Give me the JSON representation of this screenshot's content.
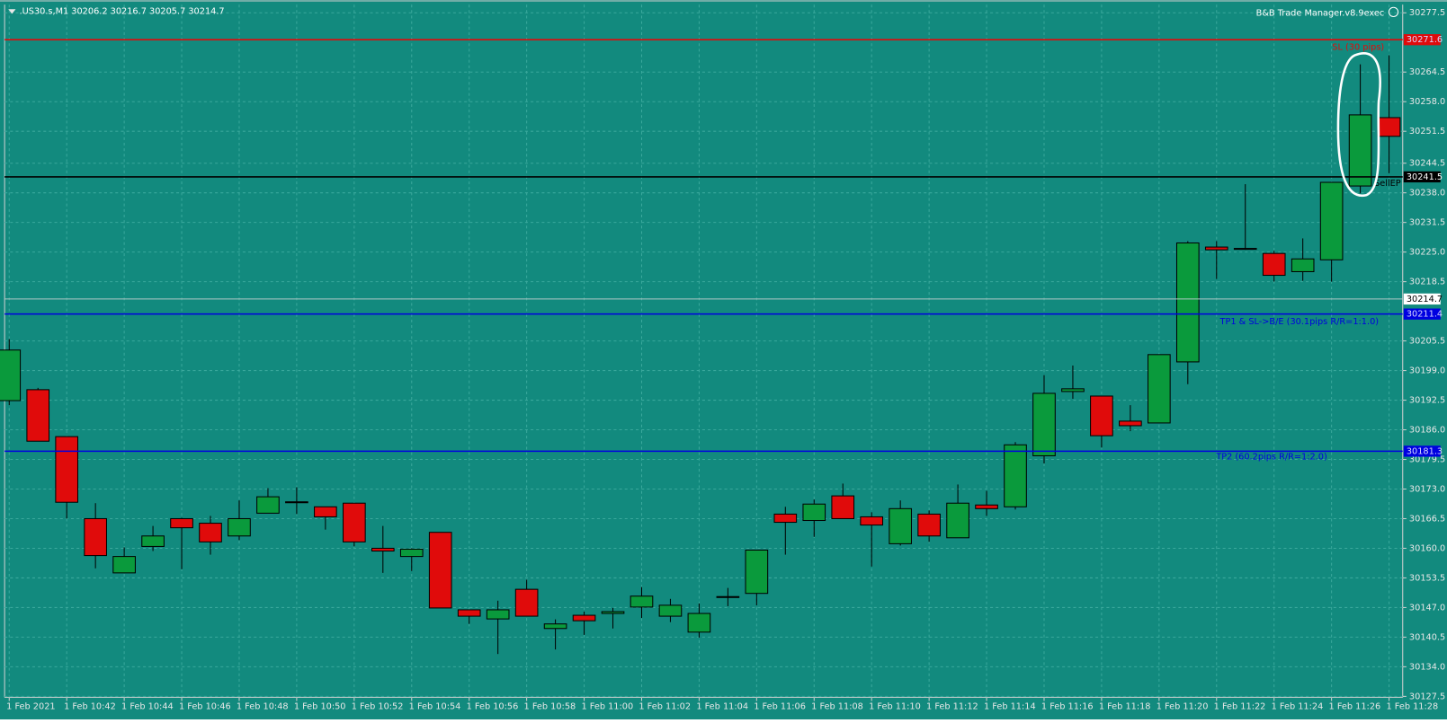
{
  "chart_data": {
    "type": "candlestick",
    "title": ".US30.s,M1  30206.2 30216.7 30205.7 30214.7",
    "indicator": "B&B Trade Manager.v8.9exec",
    "categories": [
      "1 Feb 2021",
      null,
      "1 Feb 10:42",
      null,
      "1 Feb 10:44",
      null,
      "1 Feb 10:46",
      null,
      "1 Feb 10:48",
      null,
      "1 Feb 10:50",
      null,
      "1 Feb 10:52",
      null,
      "1 Feb 10:54",
      null,
      "1 Feb 10:56",
      null,
      "1 Feb 10:58",
      null,
      "1 Feb 11:00",
      null,
      "1 Feb 11:02",
      null,
      "1 Feb 11:04",
      null,
      "1 Feb 11:06",
      null,
      "1 Feb 11:08",
      null,
      "1 Feb 11:10",
      null,
      "1 Feb 11:12",
      null,
      "1 Feb 11:14",
      null,
      "1 Feb 11:16",
      null,
      "1 Feb 11:18",
      null,
      "1 Feb 11:20",
      null,
      "1 Feb 11:22",
      null,
      "1 Feb 11:24",
      null,
      "1 Feb 11:26",
      null,
      "1 Feb 11:28"
    ],
    "open": [
      30192.4,
      30194.8,
      30184.5,
      30166.5,
      30154.6,
      30160.4,
      30166.5,
      30165.5,
      30162.7,
      30167.7,
      30170.0,
      30169.1,
      30169.9,
      30160.0,
      30158.2,
      30163.5,
      30146.5,
      30144.5,
      30151.0,
      30142.4,
      30145.3,
      30145.7,
      30147.1,
      30145.1,
      30141.6,
      30149.2,
      30150.1,
      30167.5,
      30166.1,
      30171.5,
      30166.9,
      30161.0,
      30167.5,
      30162.3,
      30169.5,
      30169.1,
      30180.3,
      30194.4,
      30193.4,
      30187.9,
      30187.5,
      30200.9,
      30226.1,
      30225.6,
      30224.7,
      30220.7,
      30223.3,
      30239.5,
      30254.5
    ],
    "high": [
      30205.9,
      30195.2,
      30184.5,
      30169.9,
      30160.2,
      30164.9,
      30166.7,
      30167.1,
      30170.5,
      30173.2,
      30173.4,
      30169.1,
      30169.9,
      30164.9,
      30160.0,
      30163.5,
      30146.5,
      30148.5,
      30153.1,
      30144.4,
      30146.1,
      30146.9,
      30151.5,
      30148.9,
      30147.9,
      30151.3,
      30159.6,
      30169.1,
      30170.7,
      30174.2,
      30167.9,
      30170.5,
      30168.3,
      30174.0,
      30172.6,
      30183.3,
      30198.0,
      30200.1,
      30193.4,
      30191.4,
      30202.5,
      30227.4,
      30227.4,
      30239.9,
      30225.3,
      30228.0,
      30240.3,
      30266.2,
      30268.2
    ],
    "low": [
      30191.4,
      30183.5,
      30166.5,
      30155.6,
      30154.6,
      30159.4,
      30155.4,
      30158.6,
      30161.8,
      30167.7,
      30167.5,
      30164.1,
      30160.4,
      30154.6,
      30155.0,
      30146.9,
      30143.4,
      30136.8,
      30145.1,
      30137.8,
      30141.0,
      30142.4,
      30144.7,
      30143.8,
      30140.4,
      30147.3,
      30147.5,
      30158.6,
      30162.5,
      30166.5,
      30156.0,
      30160.6,
      30161.4,
      30162.3,
      30167.1,
      30168.5,
      30178.6,
      30192.8,
      30182.1,
      30185.7,
      30187.5,
      30196.0,
      30219.1,
      30225.5,
      30218.5,
      30218.7,
      30218.5,
      30237.9,
      30242.3
    ],
    "close": [
      30203.5,
      30183.5,
      30170.1,
      30158.4,
      30158.2,
      30162.7,
      30164.5,
      30161.4,
      30166.5,
      30171.3,
      30170.2,
      30166.9,
      30161.4,
      30159.4,
      30159.8,
      30146.9,
      30145.1,
      30146.5,
      30145.1,
      30143.4,
      30144.1,
      30146.1,
      30149.5,
      30147.5,
      30145.7,
      30149.4,
      30159.6,
      30165.7,
      30169.7,
      30166.5,
      30165.1,
      30168.7,
      30162.7,
      30169.9,
      30168.7,
      30182.7,
      30194.0,
      30195.0,
      30184.7,
      30186.9,
      30202.5,
      30227.0,
      30225.5,
      30225.8,
      30219.9,
      30223.5,
      30240.3,
      30255.1,
      30250.4
    ],
    "up_color": "#0a9a3c",
    "down_color": "#e00b0b",
    "ylim": [
      30127.3,
      30279.3
    ],
    "yticks": [
      30277.5,
      30264.5,
      {
        "value": 30258.0,
        "label": "30258.0"
      },
      30251.5,
      30244.5,
      {
        "value": 30238.0,
        "label": "30238.0"
      },
      30231.5,
      {
        "value": 30225.0,
        "label": "30225.0"
      },
      30218.5,
      30205.5,
      {
        "value": 30199.0,
        "label": "30199.0"
      },
      30192.5,
      {
        "value": 30186.0,
        "label": "30186.0"
      },
      30179.5,
      {
        "value": 30173.0,
        "label": "30173.0"
      },
      30166.5,
      {
        "value": 30160.0,
        "label": "30160.0"
      },
      30153.5,
      {
        "value": 30147.0,
        "label": "30147.0"
      },
      30140.5,
      {
        "value": 30134.0,
        "label": "30134.0"
      },
      30127.5
    ],
    "grid": true,
    "bid": 30214.7,
    "levels": [
      {
        "value": 30271.6,
        "label": "SL (30 pips)",
        "color": "#e00b0b"
      },
      {
        "value": 30241.5,
        "label": "SellEP",
        "color": "#000000"
      },
      {
        "value": 30211.4,
        "label": "TP1 & SL->B/E (30.1pips R/R=1:1.0)",
        "color": "#0000e0"
      },
      {
        "value": 30181.3,
        "label": "TP2 (60.2pips R/R=1:2.0)",
        "color": "#0000e0"
      }
    ]
  }
}
